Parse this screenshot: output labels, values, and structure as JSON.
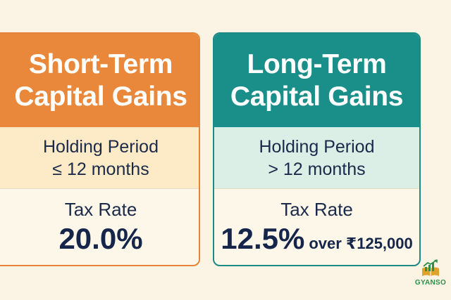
{
  "cards": {
    "short": {
      "title_line1": "Short-Term",
      "title_line2": "Capital Gains",
      "period_label": "Holding Period",
      "period_value": "≤ 12 months",
      "rate_label": "Tax Rate",
      "rate_value": "20.0%",
      "colors": {
        "header": "#e9883b",
        "band": "#fcebc6",
        "border": "#e6853a"
      }
    },
    "long": {
      "title_line1": "Long-Term",
      "title_line2": "Capital Gains",
      "period_label": "Holding Period",
      "period_value": "> 12 months",
      "rate_label": "Tax Rate",
      "rate_value": "12.5%",
      "rate_note": "over ₹125,000",
      "colors": {
        "header": "#1a8f8a",
        "band": "#dcefe6",
        "border": "#1c8b86"
      }
    }
  },
  "brand": {
    "logo": "GYANSO",
    "icon": "book-growth-chart-icon",
    "color": "#2f8f4a"
  },
  "colors": {
    "background": "#fbf3e3",
    "text_dark": "#1b2a4a"
  }
}
